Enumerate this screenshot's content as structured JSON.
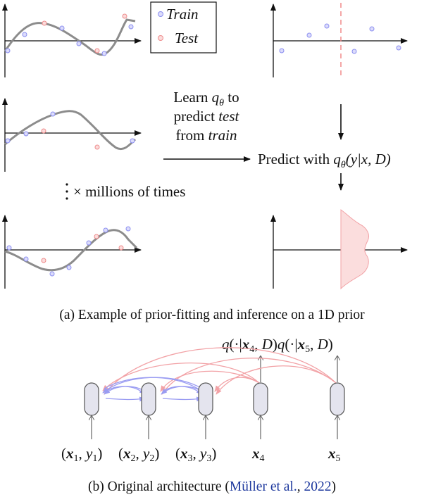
{
  "legend": {
    "train": "Train",
    "test": "Test"
  },
  "learn_text": {
    "line1_prefix": "Learn ",
    "q": "q",
    "theta": "θ",
    "line1_suffix": " to",
    "line2_prefix": "predict ",
    "line2_italic": "test",
    "line3_prefix": "from ",
    "line3_italic": "train"
  },
  "predict_text": {
    "prefix": "Predict with ",
    "formula": "(y|x, D)"
  },
  "millions_text": "× millions of times",
  "caption_a": "(a) Example of prior-fitting and inference on a 1D prior",
  "caption_b": {
    "prefix": "(b) Original architecture (",
    "cite": "Müller et al.",
    "sep": ", ",
    "year": "2022",
    "suffix": ")"
  },
  "output_label": "q(·|x4, D)q(·|x5, D)",
  "input_labels": {
    "x1y1": "(x1, y1)",
    "x2y2": "(x2, y2)",
    "x3y3": "(x3, y3)",
    "x4": "x4",
    "x5": "x5"
  },
  "colors": {
    "train": "#8a8ef0",
    "test": "#ee8a8a",
    "curve": "#8c8c8c",
    "node_fill": "#e4e4ee",
    "arrow_blue": "#9a9cf2",
    "arrow_red": "#f2a2a6",
    "cite": "#1f3a9e"
  }
}
